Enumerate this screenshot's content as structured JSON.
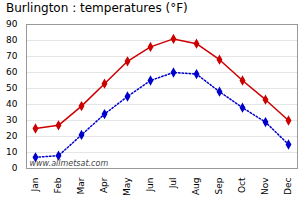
{
  "chart_data": {
    "type": "line",
    "title": "Burlington : temperatures (°F)",
    "categories": [
      "Jan",
      "Feb",
      "Mar",
      "Apr",
      "May",
      "Jun",
      "Jul",
      "Aug",
      "Sep",
      "Oct",
      "Nov",
      "Dec"
    ],
    "series": [
      {
        "color": "#cc0000",
        "marker": "diamond",
        "line_style": "solid",
        "values": [
          25,
          27,
          39,
          53,
          67,
          76,
          81,
          78,
          68,
          55,
          43,
          30
        ]
      },
      {
        "color": "#0000cc",
        "marker": "diamond",
        "line_style": "dotted",
        "values": [
          7,
          8,
          21,
          34,
          45,
          55,
          60,
          59,
          48,
          38,
          29,
          15
        ]
      }
    ],
    "ylim": [
      0,
      90
    ],
    "yticks": [
      0,
      10,
      20,
      30,
      40,
      50,
      60,
      70,
      80,
      90
    ],
    "grid": true,
    "annotation": "www.allmetsat.com"
  }
}
